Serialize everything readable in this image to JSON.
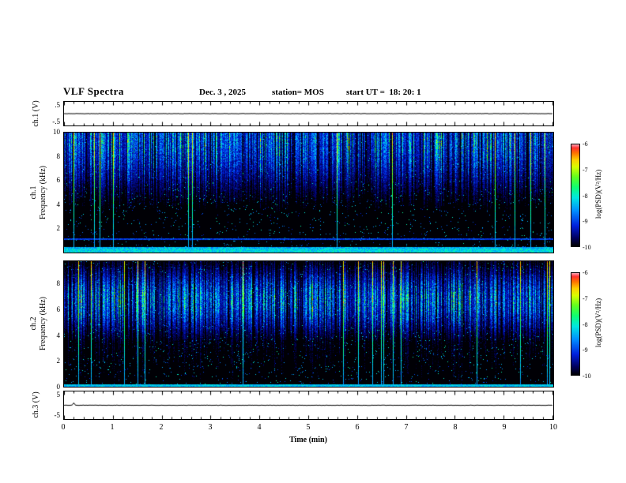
{
  "header": {
    "title": "VLF Spectra",
    "date": "Dec. 3 , 2025",
    "station": "station= MOS",
    "start_ut": "start UT =  18: 20: 1"
  },
  "panels": {
    "ch1_wave": {
      "axis_label": "ch.1 (V)",
      "ymax_label": ".5",
      "ymin_label": "-.5"
    },
    "ch1_spec": {
      "axis_label_channel": "ch.1",
      "axis_label_freq": "Frequency (kHz)",
      "yticks": [
        "10",
        "8",
        "6",
        "4",
        "2"
      ]
    },
    "ch2_spec": {
      "axis_label_channel": "ch.2",
      "axis_label_freq": "Frequency (kHz)",
      "yticks": [
        "8",
        "6",
        "4",
        "2",
        "0"
      ]
    },
    "ch3_wave": {
      "axis_label": "ch.3 (V)",
      "ymax_label": "5",
      "ymin_label": "-5"
    }
  },
  "colorbar": {
    "ticks": [
      "-6",
      "-7",
      "-8",
      "-9",
      "-10"
    ],
    "label": "log(PSD)(V²/Hz)"
  },
  "xaxis": {
    "ticks": [
      "0",
      "1",
      "2",
      "3",
      "4",
      "5",
      "6",
      "7",
      "8",
      "9",
      "10"
    ],
    "label": "Time (min)"
  },
  "chart_data": {
    "type": "heatmap",
    "figure": "VLF spectra stack: two voltage strip charts and two frequency-time spectrograms over 10 minutes",
    "xlabel": "Time (min)",
    "xlim": [
      0,
      10
    ],
    "xticks": [
      0,
      1,
      2,
      3,
      4,
      5,
      6,
      7,
      8,
      9,
      10
    ],
    "panels": [
      {
        "id": "ch1_voltage",
        "type": "line",
        "ylabel": "ch.1 (V)",
        "ylim": [
          -0.5,
          0.5
        ],
        "summary": "flat trace at ~0 V for the full 10 min"
      },
      {
        "id": "ch1_spectrogram",
        "type": "heatmap",
        "ylabel": "Frequency (kHz)",
        "ylim": [
          0,
          10
        ],
        "zlabel": "log(PSD)(V²/Hz)",
        "zlim": [
          -10,
          -6
        ],
        "summary": "dense vertical sferic streaks; strongest power at 7-10 kHz fading downward, persistent bright band below ~0.5 kHz, occasional saturated full-height red streaks"
      },
      {
        "id": "ch2_spectrogram",
        "type": "heatmap",
        "ylabel": "Frequency (kHz)",
        "ylim": [
          0,
          9.8
        ],
        "zlabel": "log(PSD)(V²/Hz)",
        "zlim": [
          -10,
          -6
        ],
        "summary": "dense vertical sferic streaks; strongest power concentrated 5.5-8.5 kHz, thin bright band at 0 kHz, occasional saturated red streaks"
      },
      {
        "id": "ch3_voltage",
        "type": "line",
        "ylabel": "ch.3 (V)",
        "ylim": [
          -5,
          5
        ],
        "summary": "flat trace at ~0 V with a small spike near t=0.2 min"
      }
    ],
    "colormap": [
      [
        0.0,
        "#000005"
      ],
      [
        0.08,
        "#000060"
      ],
      [
        0.2,
        "#0020dd"
      ],
      [
        0.35,
        "#0090ff"
      ],
      [
        0.48,
        "#00e8e0"
      ],
      [
        0.58,
        "#10ff70"
      ],
      [
        0.68,
        "#60ff20"
      ],
      [
        0.78,
        "#d8ff00"
      ],
      [
        0.85,
        "#ffd000"
      ],
      [
        0.92,
        "#ff7000"
      ],
      [
        0.97,
        "#ff3030"
      ],
      [
        1.0,
        "#ff9aa8"
      ]
    ],
    "render": {
      "ch1_spec": {
        "seed": 1337,
        "center": 0.03,
        "sigma": 0.27,
        "upper": 0.5,
        "tail": 0.1,
        "density": 0.86,
        "strong_prob": 0.03,
        "speckle": 0.02,
        "bottom_band": 0.035,
        "bottom_strength": 0.55,
        "hlines": [
          {
            "pos": 0.885,
            "wd": 0.005,
            "strength": 0.3
          },
          {
            "pos": 0.955,
            "wd": 0.007,
            "strength": 0.5
          }
        ]
      },
      "ch2_spec": {
        "seed": 4242,
        "center": 0.3,
        "sigma": 0.17,
        "upper": 0.9,
        "tail": 0.28,
        "density": 0.84,
        "strong_prob": 0.026,
        "speckle": 0.022,
        "bottom_band": 0.02,
        "bottom_strength": 0.5,
        "hlines": [
          {
            "pos": 0.985,
            "wd": 0.006,
            "strength": 0.45
          }
        ]
      },
      "ch1_wave": {
        "seed": 11,
        "noise": 0.5,
        "spikes": []
      },
      "ch3_wave": {
        "seed": 22,
        "noise": 0.5,
        "spikes": [
          {
            "t": 0.2,
            "amp": 1.2
          }
        ]
      }
    }
  }
}
